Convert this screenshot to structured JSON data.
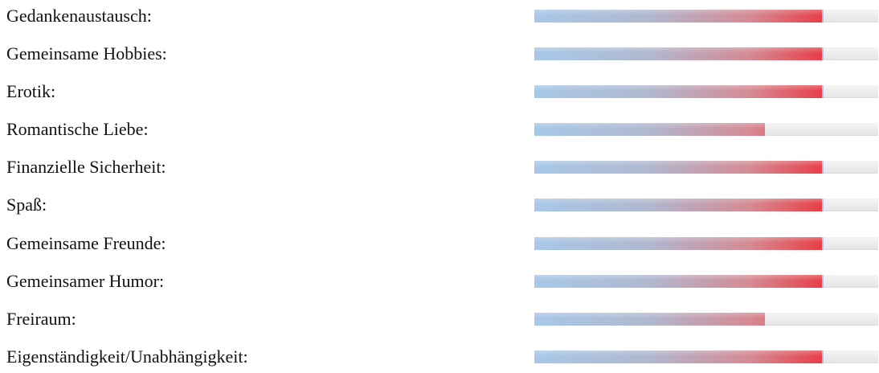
{
  "colors": {
    "fill_start": "#a7c8e8",
    "fill_end": "#e83f48",
    "track": "#ececec"
  },
  "ratings": [
    {
      "label": "Gedankenaustausch:",
      "value": 0.84
    },
    {
      "label": "Gemeinsame Hobbies:",
      "value": 0.84
    },
    {
      "label": "Erotik:",
      "value": 0.84
    },
    {
      "label": "Romantische Liebe:",
      "value": 0.67
    },
    {
      "label": "Finanzielle Sicherheit:",
      "value": 0.84
    },
    {
      "label": "Spaß:",
      "value": 0.84
    },
    {
      "label": "Gemeinsame Freunde:",
      "value": 0.84
    },
    {
      "label": "Gemeinsamer Humor:",
      "value": 0.84
    },
    {
      "label": "Freiraum:",
      "value": 0.67
    },
    {
      "label": "Eigenständigkeit/Unabhängigkeit:",
      "value": 0.84
    }
  ]
}
